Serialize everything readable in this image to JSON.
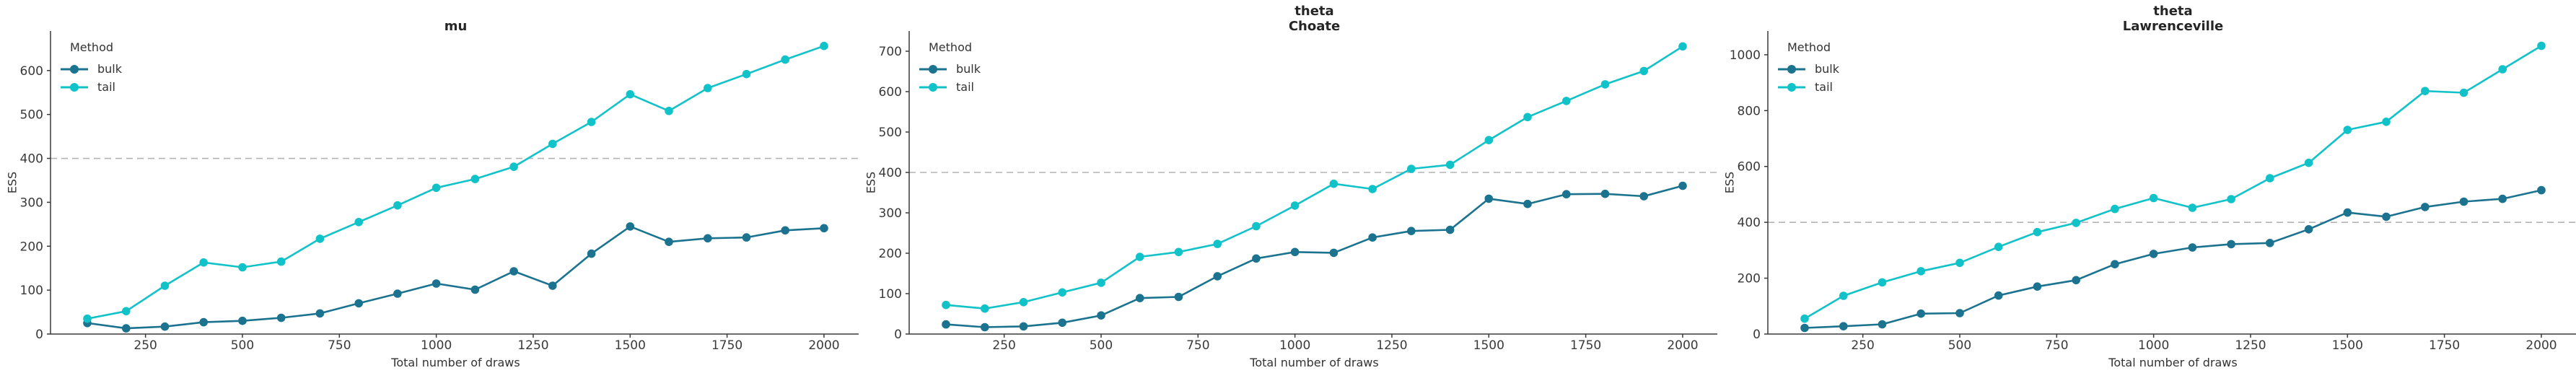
{
  "figure": {
    "xlabel": "Total number of draws",
    "ylabel": "ESS",
    "legend": {
      "title": "Method",
      "entries": [
        {
          "label": "bulk",
          "color": "#1b738f"
        },
        {
          "label": "tail",
          "color": "#12c2c9"
        }
      ]
    },
    "reference_line_value": 400
  },
  "style": {
    "background": "#ffffff",
    "axis_color": "#3a3a3a",
    "tick_label_color": "#3a3a3a",
    "text_color": "#333333",
    "title_color": "#262626",
    "reference_line_color": "#b3b3b3",
    "bulk_color": "#1b738f",
    "tail_color": "#12c2c9"
  },
  "chart_data": [
    {
      "type": "line",
      "title": "mu",
      "xlabel": "Total number of draws",
      "ylabel": "ESS",
      "legend_position": "upper left",
      "grid": false,
      "hline": 400,
      "xlim": [
        5,
        2095
      ],
      "ylim": [
        0,
        690
      ],
      "xticks": [
        250,
        500,
        750,
        1000,
        1250,
        1500,
        1750,
        2000
      ],
      "yticks": [
        0,
        100,
        200,
        300,
        400,
        500,
        600
      ],
      "x": [
        100,
        200,
        300,
        400,
        500,
        600,
        700,
        800,
        900,
        1000,
        1100,
        1200,
        1300,
        1400,
        1500,
        1600,
        1700,
        1800,
        1900,
        2000
      ],
      "series": [
        {
          "name": "bulk",
          "color": "#1b738f",
          "values": [
            25,
            13,
            17,
            27,
            30,
            37,
            47,
            70,
            92,
            115,
            101,
            143,
            110,
            183,
            245,
            210,
            218,
            220,
            236,
            241
          ]
        },
        {
          "name": "tail",
          "color": "#12c2c9",
          "values": [
            35,
            52,
            110,
            163,
            152,
            165,
            217,
            255,
            293,
            333,
            353,
            381,
            433,
            483,
            546,
            508,
            560,
            592,
            625,
            656
          ]
        }
      ]
    },
    {
      "type": "line",
      "title": "theta\nChoate",
      "xlabel": "Total number of draws",
      "ylabel": "ESS",
      "legend_position": "upper left",
      "grid": false,
      "hline": 400,
      "xlim": [
        5,
        2095
      ],
      "ylim": [
        0,
        750
      ],
      "xticks": [
        250,
        500,
        750,
        1000,
        1250,
        1500,
        1750,
        2000
      ],
      "yticks": [
        0,
        100,
        200,
        300,
        400,
        500,
        600,
        700
      ],
      "x": [
        100,
        200,
        300,
        400,
        500,
        600,
        700,
        800,
        900,
        1000,
        1100,
        1200,
        1300,
        1400,
        1500,
        1600,
        1700,
        1800,
        1900,
        2000
      ],
      "series": [
        {
          "name": "bulk",
          "color": "#1b738f",
          "values": [
            24,
            17,
            19,
            28,
            46,
            89,
            92,
            143,
            187,
            203,
            201,
            239,
            255,
            258,
            335,
            322,
            346,
            347,
            341,
            367
          ]
        },
        {
          "name": "tail",
          "color": "#12c2c9",
          "values": [
            72,
            63,
            79,
            103,
            127,
            191,
            203,
            223,
            267,
            318,
            372,
            359,
            409,
            419,
            480,
            537,
            577,
            618,
            651,
            712
          ]
        }
      ]
    },
    {
      "type": "line",
      "title": "theta\nLawrenceville",
      "xlabel": "Total number of draws",
      "ylabel": "ESS",
      "legend_position": "upper left",
      "grid": false,
      "hline": 400,
      "xlim": [
        5,
        2095
      ],
      "ylim": [
        0,
        1085
      ],
      "xticks": [
        250,
        500,
        750,
        1000,
        1250,
        1500,
        1750,
        2000
      ],
      "yticks": [
        0,
        200,
        400,
        600,
        800,
        1000
      ],
      "x": [
        100,
        200,
        300,
        400,
        500,
        600,
        700,
        800,
        900,
        1000,
        1100,
        1200,
        1300,
        1400,
        1500,
        1600,
        1700,
        1800,
        1900,
        2000
      ],
      "series": [
        {
          "name": "bulk",
          "color": "#1b738f",
          "values": [
            22,
            28,
            35,
            73,
            75,
            138,
            170,
            193,
            250,
            287,
            310,
            322,
            326,
            375,
            435,
            420,
            455,
            474,
            484,
            515
          ]
        },
        {
          "name": "tail",
          "color": "#12c2c9",
          "values": [
            55,
            137,
            185,
            225,
            255,
            312,
            365,
            398,
            448,
            487,
            452,
            483,
            558,
            613,
            731,
            760,
            870,
            864,
            948,
            1032
          ]
        }
      ]
    }
  ]
}
